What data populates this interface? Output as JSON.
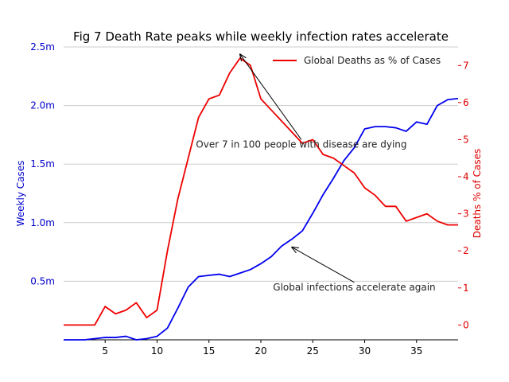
{
  "chart_data": {
    "type": "line",
    "title": "Fig 7 Death Rate peaks while weekly infection rates accelerate",
    "x": [
      1,
      2,
      3,
      4,
      5,
      6,
      7,
      8,
      9,
      10,
      11,
      12,
      13,
      14,
      15,
      16,
      17,
      18,
      19,
      20,
      21,
      22,
      23,
      24,
      25,
      26,
      27,
      28,
      29,
      30,
      31,
      32,
      33,
      34,
      35,
      36,
      37,
      38,
      39
    ],
    "xlim": [
      1,
      39
    ],
    "x_ticks": [
      5,
      10,
      15,
      20,
      25,
      30,
      35
    ],
    "grid": "horizontal",
    "legend_position": "top-right",
    "left_axis": {
      "label": "Weekly Cases",
      "color": "#0000cc",
      "ylim": [
        0,
        2.5
      ],
      "ticks": [
        0.5,
        1.0,
        1.5,
        2.0,
        2.5
      ],
      "tick_labels": [
        "0.5m",
        "1.0m",
        "1.5m",
        "2.0m",
        "2.5m"
      ]
    },
    "right_axis": {
      "label": "Deaths % of Cases",
      "color": "#dd0000",
      "ylim": [
        -0.4,
        7.5
      ],
      "ticks": [
        0,
        1,
        2,
        3,
        4,
        5,
        6,
        7
      ],
      "tick_labels": [
        "0",
        "1",
        "2",
        "3",
        "4",
        "5",
        "6",
        "7"
      ]
    },
    "series": [
      {
        "axis": "left",
        "color": "#0000ee",
        "unit": "millions",
        "values": [
          0.0,
          0.0,
          0.0,
          0.01,
          0.02,
          0.02,
          0.03,
          0.0,
          0.01,
          0.03,
          0.1,
          0.27,
          0.45,
          0.54,
          0.55,
          0.56,
          0.54,
          0.57,
          0.6,
          0.65,
          0.71,
          0.8,
          0.86,
          0.93,
          1.08,
          1.24,
          1.38,
          1.53,
          1.64,
          1.8,
          1.82,
          1.82,
          1.81,
          1.78,
          1.86,
          1.84,
          2.0,
          2.05,
          2.06
        ]
      },
      {
        "name": "Global Deaths as % of Cases",
        "axis": "right",
        "color": "#ee0000",
        "values": [
          0.0,
          0.0,
          0.0,
          0.0,
          0.5,
          0.3,
          0.4,
          0.6,
          0.2,
          0.4,
          2.0,
          3.4,
          4.5,
          5.6,
          6.1,
          6.2,
          6.8,
          7.2,
          7.0,
          6.1,
          5.8,
          5.5,
          5.2,
          4.9,
          5.0,
          4.6,
          4.5,
          4.3,
          4.1,
          3.7,
          3.5,
          3.2,
          3.2,
          2.8,
          2.9,
          3.0,
          2.8,
          2.7,
          2.7
        ]
      }
    ],
    "annotations": [
      {
        "text": "Over 7 in 100 people with disease are dying",
        "arrow_to_x": 18,
        "arrow_to_y": 7.3,
        "axis": "right",
        "text_x": 23.9,
        "text_y": 5.0
      },
      {
        "text": "Global infections accelerate again",
        "arrow_to_x": 23,
        "arrow_to_y": 0.79,
        "axis": "left",
        "text_x": 29,
        "text_y": 0.49
      }
    ]
  }
}
